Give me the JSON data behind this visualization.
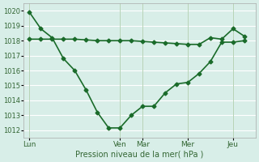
{
  "title": "",
  "xlabel": "Pression niveau de la mer( hPa )",
  "ylabel": "",
  "bg_color": "#d8eee8",
  "line_color": "#1a6b2a",
  "grid_color": "#ffffff",
  "ylim": [
    1011.5,
    1020.5
  ],
  "yticks": [
    1012,
    1013,
    1014,
    1015,
    1016,
    1017,
    1018,
    1019,
    1020
  ],
  "day_labels": [
    "Lun",
    "Ven",
    "Mar",
    "Mer",
    "Jeu"
  ],
  "day_positions": [
    0,
    16,
    20,
    28,
    36
  ],
  "line1_x": [
    0,
    2,
    4,
    6,
    8,
    10,
    12,
    14,
    16,
    18,
    20,
    22,
    24,
    26,
    28,
    30,
    32,
    34,
    36,
    38
  ],
  "line1_y": [
    1019.9,
    1018.8,
    1018.2,
    1016.8,
    1016.0,
    1014.7,
    1013.2,
    1012.15,
    1012.15,
    1013.0,
    1013.6,
    1013.6,
    1014.5,
    1015.1,
    1015.2,
    1015.8,
    1016.6,
    1017.9,
    1017.9,
    1018.0
  ],
  "line2_x": [
    0,
    2,
    4,
    6,
    8,
    10,
    12,
    14,
    16,
    18,
    20,
    22,
    24,
    26,
    28,
    30,
    32,
    34,
    36,
    38
  ],
  "line2_y": [
    1018.1,
    1018.1,
    1018.1,
    1018.1,
    1018.1,
    1018.05,
    1018.0,
    1018.0,
    1018.0,
    1018.0,
    1017.95,
    1017.9,
    1017.85,
    1017.8,
    1017.75,
    1017.75,
    1018.2,
    1018.1,
    1018.8,
    1018.3
  ],
  "figsize": [
    3.2,
    2.0
  ],
  "dpi": 100
}
